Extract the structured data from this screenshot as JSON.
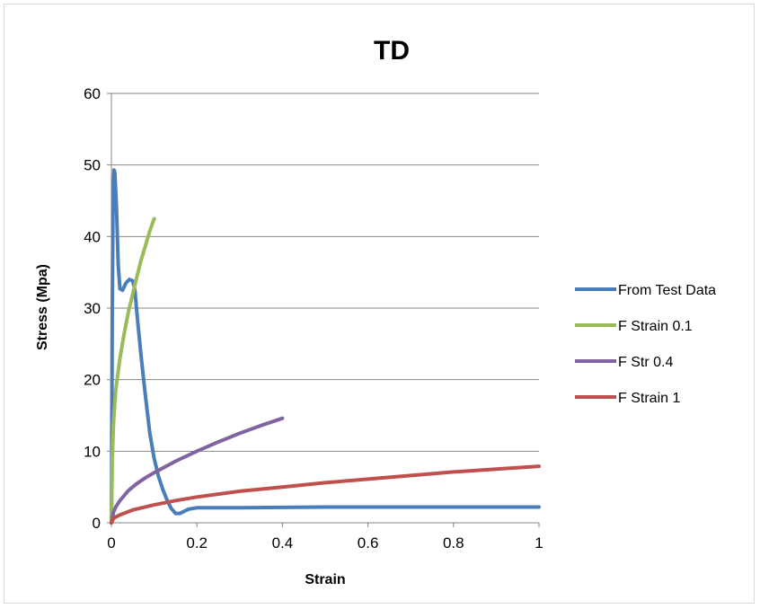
{
  "chart_data": {
    "type": "line",
    "title": "TD",
    "xlabel": "Strain",
    "ylabel": "Stress (Mpa)",
    "xlim": [
      0,
      1
    ],
    "ylim": [
      0,
      60
    ],
    "x_ticks": [
      "0",
      "0.2",
      "0.4",
      "0.6",
      "0.8",
      "1"
    ],
    "y_ticks": [
      "0",
      "10",
      "20",
      "30",
      "40",
      "50",
      "60"
    ],
    "grid": "horizontal",
    "legend_position": "right",
    "series": [
      {
        "name": "From Test Data",
        "color": "#4a7ebb",
        "x": [
          0,
          0.002,
          0.004,
          0.006,
          0.008,
          0.012,
          0.016,
          0.02,
          0.026,
          0.034,
          0.042,
          0.05,
          0.055,
          0.06,
          0.07,
          0.08,
          0.09,
          0.1,
          0.11,
          0.12,
          0.13,
          0.14,
          0.15,
          0.16,
          0.17,
          0.18,
          0.2,
          0.25,
          0.3,
          0.4,
          0.5,
          0.6,
          0.7,
          0.8,
          0.9,
          1.0
        ],
        "y": [
          0,
          30,
          46,
          49.3,
          49,
          44,
          36,
          32.7,
          32.5,
          33.5,
          34,
          33.8,
          32.5,
          29,
          23,
          17.5,
          12.5,
          9,
          6.5,
          4.7,
          3.2,
          2,
          1.3,
          1.3,
          1.6,
          1.9,
          2.1,
          2.1,
          2.1,
          2.15,
          2.2,
          2.2,
          2.2,
          2.2,
          2.2,
          2.2
        ]
      },
      {
        "name": "F Strain 0.1",
        "color": "#9bbb59",
        "x": [
          0,
          0.002,
          0.005,
          0.01,
          0.02,
          0.03,
          0.04,
          0.05,
          0.06,
          0.07,
          0.08,
          0.09,
          0.1
        ],
        "y": [
          0,
          9,
          14,
          18.5,
          23,
          26.5,
          29.5,
          32,
          34.5,
          36.8,
          38.8,
          40.8,
          42.5
        ]
      },
      {
        "name": "F Str 0.4",
        "color": "#8064a2",
        "x": [
          0,
          0.005,
          0.01,
          0.02,
          0.04,
          0.06,
          0.08,
          0.1,
          0.15,
          0.2,
          0.25,
          0.3,
          0.35,
          0.4
        ],
        "y": [
          0,
          1.5,
          2.2,
          3.1,
          4.5,
          5.5,
          6.3,
          7,
          8.6,
          10,
          11.3,
          12.5,
          13.6,
          14.6
        ]
      },
      {
        "name": "F Strain 1",
        "color": "#c0504d",
        "x": [
          0,
          0.005,
          0.01,
          0.02,
          0.05,
          0.1,
          0.15,
          0.2,
          0.3,
          0.4,
          0.5,
          0.6,
          0.7,
          0.8,
          0.9,
          1.0
        ],
        "y": [
          0,
          0.6,
          0.8,
          1.1,
          1.8,
          2.5,
          3.1,
          3.6,
          4.4,
          5.0,
          5.6,
          6.1,
          6.6,
          7.1,
          7.5,
          7.9
        ]
      }
    ]
  }
}
